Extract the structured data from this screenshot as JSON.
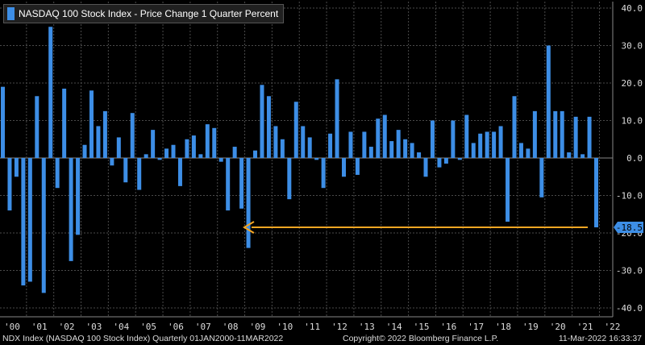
{
  "chart_data": {
    "type": "bar",
    "title": "NASDAQ 100 Stock Index - Price Change 1 Quarter Percent",
    "ylim": [
      -42,
      42
    ],
    "yticks": [
      "40.0",
      "30.0",
      "20.0",
      "10.0",
      "0.0",
      "-10.0",
      "-20.0",
      "-30.0",
      "-40.0"
    ],
    "ytick_values": [
      40,
      30,
      20,
      10,
      0,
      -10,
      -20,
      -30,
      -40
    ],
    "xtick_labels": [
      "'00",
      "'01",
      "'02",
      "'03",
      "'04",
      "'05",
      "'06",
      "'07",
      "'08",
      "'09",
      "'10",
      "'11",
      "'12",
      "'13",
      "'14",
      "'15",
      "'16",
      "'17",
      "'18",
      "'19",
      "'20",
      "'21",
      "'22"
    ],
    "grid": true,
    "last_value_label": "-18.5",
    "reference_arrow": {
      "from_value": -18.5,
      "color": "#f5a623"
    },
    "bar_color": "#3d8ee6",
    "series": [
      {
        "values": [
          19.0,
          -14.0,
          -5.0,
          -34.0,
          -33.0,
          16.5,
          -36.0,
          35.0,
          -8.0,
          18.5,
          -27.5,
          -20.5,
          3.5,
          18.0,
          8.5,
          12.5,
          -2.0,
          5.5,
          -6.5,
          12.0,
          -8.5,
          1.0,
          7.5,
          -0.5,
          2.5,
          3.5,
          -7.5,
          5.0,
          6.0,
          1.0,
          9.0,
          8.0,
          -1.0,
          -14.0,
          3.0,
          -13.5,
          -24.0,
          2.0,
          19.5,
          16.5,
          8.5,
          5.0,
          -11.0,
          15.0,
          8.5,
          5.5,
          -0.5,
          -8.0,
          6.5,
          21.0,
          -5.0,
          7.0,
          -4.5,
          7.0,
          3.0,
          10.5,
          11.5,
          4.5,
          7.5,
          5.0,
          4.0,
          1.5,
          -5.0,
          10.0,
          -2.5,
          -1.5,
          10.0,
          -0.5,
          11.5,
          4.0,
          6.5,
          7.0,
          7.0,
          8.5,
          -17.0,
          16.5,
          4.0,
          2.5,
          12.5,
          -10.5,
          30.0,
          12.5,
          12.5,
          1.5,
          11.0,
          1.0,
          11.0,
          -18.5
        ]
      }
    ]
  },
  "footer": {
    "left": "NDX Index (NASDAQ 100 Stock Index)  Quarterly 01JAN2000-11MAR2022",
    "center": "Copyright© 2022 Bloomberg Finance L.P.",
    "right": "11-Mar-2022 16:33:37"
  }
}
